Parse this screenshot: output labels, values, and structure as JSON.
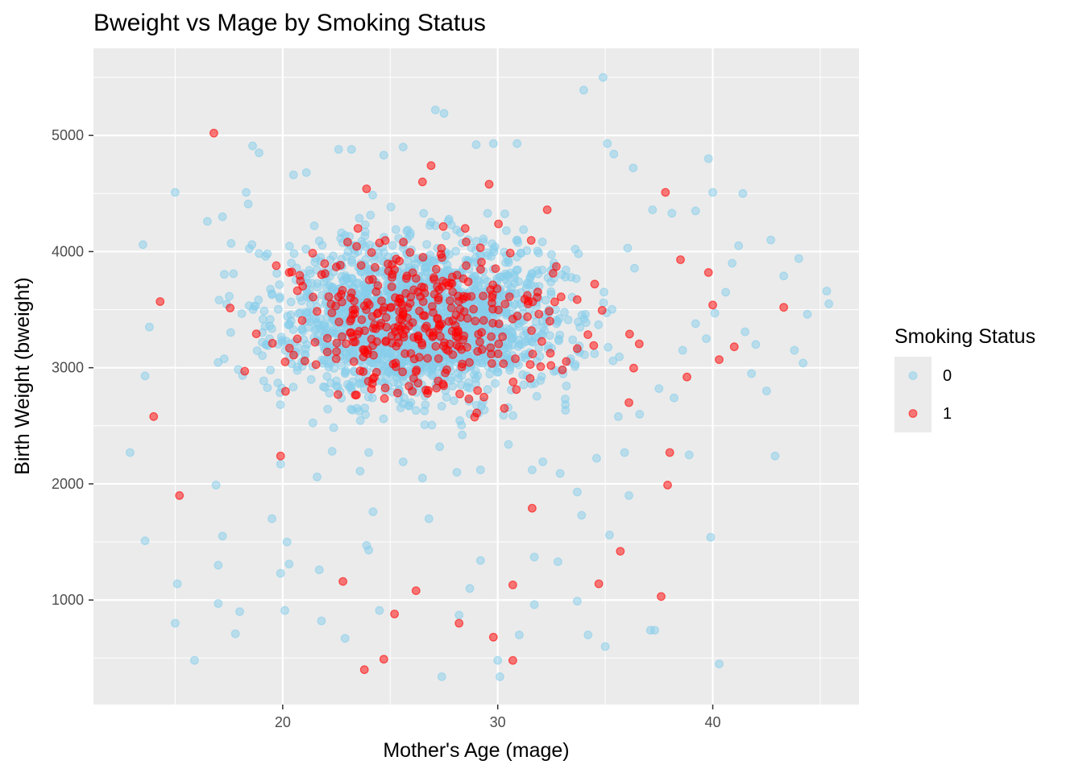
{
  "chart_data": {
    "type": "scatter",
    "title": "Bweight vs Mage by Smoking Status",
    "xlabel": "Mother's Age (mage)",
    "ylabel": "Birth Weight (bweight)",
    "xlim": [
      11.2,
      46.8
    ],
    "ylim": [
      100,
      5750
    ],
    "x_ticks": [
      20,
      30,
      40
    ],
    "y_ticks": [
      1000,
      2000,
      3000,
      4000,
      5000
    ],
    "grid": true,
    "legend": {
      "title": "Smoking Status",
      "position": "right",
      "entries": [
        {
          "label": "0",
          "color": "#87CEEB"
        },
        {
          "label": "1",
          "color": "#FF0000"
        }
      ]
    },
    "point_alpha": 0.5,
    "series": [
      {
        "name": "0",
        "color": "#87CEEB",
        "points": [
          [
            12.9,
            2270
          ],
          [
            13.6,
            1510
          ],
          [
            13.5,
            4060
          ],
          [
            13.6,
            2930
          ],
          [
            13.8,
            3350
          ],
          [
            15.0,
            4510
          ],
          [
            15.0,
            800
          ],
          [
            15.1,
            1140
          ],
          [
            15.9,
            480
          ],
          [
            16.5,
            4260
          ],
          [
            16.9,
            1990
          ],
          [
            17.0,
            1300
          ],
          [
            17.2,
            1550
          ],
          [
            17.0,
            970
          ],
          [
            17.8,
            710
          ],
          [
            18.0,
            900
          ],
          [
            18.6,
            4910
          ],
          [
            18.9,
            4850
          ],
          [
            19.5,
            1700
          ],
          [
            19.9,
            1230
          ],
          [
            20.1,
            910
          ],
          [
            20.2,
            1500
          ],
          [
            20.3,
            1310
          ],
          [
            20.5,
            4660
          ],
          [
            21.1,
            4680
          ],
          [
            21.7,
            1260
          ],
          [
            21.8,
            820
          ],
          [
            22.6,
            4880
          ],
          [
            22.9,
            670
          ],
          [
            23.2,
            4880
          ],
          [
            23.9,
            1470
          ],
          [
            24.0,
            1430
          ],
          [
            24.2,
            1760
          ],
          [
            24.5,
            910
          ],
          [
            24.7,
            4830
          ],
          [
            25.6,
            4900
          ],
          [
            26.8,
            1700
          ],
          [
            27.1,
            5220
          ],
          [
            27.4,
            340
          ],
          [
            27.5,
            5190
          ],
          [
            28.2,
            870
          ],
          [
            28.7,
            1100
          ],
          [
            29.0,
            4920
          ],
          [
            29.2,
            1340
          ],
          [
            29.8,
            4930
          ],
          [
            30.0,
            480
          ],
          [
            30.1,
            340
          ],
          [
            30.9,
            4930
          ],
          [
            31.0,
            700
          ],
          [
            31.7,
            1370
          ],
          [
            31.7,
            960
          ],
          [
            32.8,
            1330
          ],
          [
            33.7,
            990
          ],
          [
            33.9,
            1730
          ],
          [
            34.0,
            5390
          ],
          [
            34.2,
            700
          ],
          [
            34.9,
            5500
          ],
          [
            35.0,
            600
          ],
          [
            35.1,
            4930
          ],
          [
            35.2,
            1560
          ],
          [
            35.4,
            4840
          ],
          [
            36.1,
            1900
          ],
          [
            36.3,
            4720
          ],
          [
            37.1,
            740
          ],
          [
            37.2,
            4360
          ],
          [
            37.3,
            740
          ],
          [
            38.1,
            4330
          ],
          [
            38.9,
            2250
          ],
          [
            39.2,
            4350
          ],
          [
            39.8,
            4800
          ],
          [
            39.9,
            1540
          ],
          [
            40.0,
            4510
          ],
          [
            40.3,
            450
          ],
          [
            41.4,
            4500
          ],
          [
            42.0,
            3200
          ],
          [
            42.9,
            2240
          ],
          [
            43.3,
            3790
          ],
          [
            43.8,
            3150
          ],
          [
            44.0,
            3940
          ],
          [
            44.2,
            3040
          ],
          [
            44.4,
            3460
          ],
          [
            45.3,
            3660
          ],
          [
            45.4,
            3550
          ],
          [
            17.2,
            4300
          ],
          [
            17.6,
            4070
          ],
          [
            18.3,
            4510
          ],
          [
            18.4,
            4410
          ],
          [
            19.9,
            2170
          ],
          [
            21.6,
            2060
          ],
          [
            22.3,
            2280
          ],
          [
            23.6,
            2110
          ],
          [
            24.0,
            2270
          ],
          [
            25.6,
            2190
          ],
          [
            26.5,
            2050
          ],
          [
            27.3,
            2320
          ],
          [
            28.1,
            2100
          ],
          [
            29.2,
            2120
          ],
          [
            30.5,
            2340
          ],
          [
            31.6,
            2120
          ],
          [
            32.1,
            2190
          ],
          [
            32.9,
            2090
          ],
          [
            33.7,
            1930
          ],
          [
            34.6,
            2220
          ],
          [
            35.9,
            2270
          ],
          [
            36.6,
            2600
          ],
          [
            37.5,
            2820
          ],
          [
            38.2,
            2740
          ],
          [
            38.6,
            3150
          ],
          [
            39.2,
            3380
          ],
          [
            39.7,
            3250
          ],
          [
            40.1,
            3470
          ],
          [
            40.6,
            3650
          ],
          [
            40.9,
            3900
          ],
          [
            41.2,
            4050
          ],
          [
            41.5,
            3310
          ],
          [
            41.8,
            2950
          ],
          [
            42.5,
            2800
          ],
          [
            42.7,
            4100
          ]
        ]
      },
      {
        "name": "1",
        "color": "#FF0000",
        "points": [
          [
            14.0,
            2580
          ],
          [
            14.3,
            3570
          ],
          [
            15.2,
            1900
          ],
          [
            16.8,
            5020
          ],
          [
            19.9,
            2240
          ],
          [
            23.9,
            4540
          ],
          [
            23.8,
            400
          ],
          [
            24.7,
            490
          ],
          [
            25.2,
            880
          ],
          [
            26.2,
            1080
          ],
          [
            22.8,
            1160
          ],
          [
            28.2,
            800
          ],
          [
            29.8,
            680
          ],
          [
            30.7,
            1130
          ],
          [
            30.7,
            480
          ],
          [
            31.6,
            1790
          ],
          [
            34.7,
            1140
          ],
          [
            35.7,
            1420
          ],
          [
            37.6,
            1030
          ],
          [
            37.8,
            4510
          ],
          [
            37.9,
            1990
          ],
          [
            38.0,
            2270
          ],
          [
            39.8,
            3820
          ],
          [
            40.0,
            3540
          ],
          [
            40.3,
            3070
          ],
          [
            41.0,
            3180
          ],
          [
            43.3,
            3520
          ],
          [
            38.5,
            3930
          ],
          [
            38.8,
            2920
          ],
          [
            36.1,
            2700
          ],
          [
            32.3,
            4360
          ],
          [
            29.6,
            4580
          ],
          [
            26.5,
            4600
          ],
          [
            26.9,
            4740
          ]
        ]
      }
    ],
    "dense_region": {
      "description_of_bulk": "dense cloud of overlapping points",
      "x_range": [
        15.5,
        38.5
      ],
      "y_range": [
        2400,
        4400
      ],
      "center": [
        26.5,
        3400
      ],
      "smoker_share": 0.15
    }
  }
}
